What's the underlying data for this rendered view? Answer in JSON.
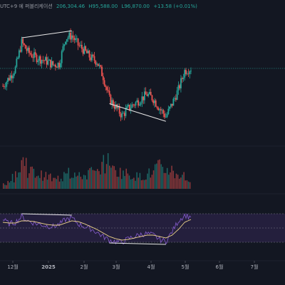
{
  "header": {
    "timezone": "UTC+9 에 퍼블리케이션",
    "values": [
      "206,304.46",
      "H95,588.00",
      "L96,870.00",
      "+13.58 (+0.01%)"
    ]
  },
  "xaxis": {
    "labels": [
      "12월",
      "2025",
      "2월",
      "3월",
      "4월",
      "5월",
      "6월",
      "7월"
    ]
  },
  "colors": {
    "background": "#131722",
    "up": "#26a69a",
    "down": "#ef5350",
    "divergence": "#e8e8e8",
    "price_line": "#26a69a",
    "rsi_line": "#7e57c2",
    "rsi_ma": "#f0d58c",
    "rsi_band": "#241f3d"
  },
  "chart_data": {
    "type": "candlestick",
    "x": [
      "12월",
      "2025",
      "2월",
      "3월",
      "4월",
      "5월",
      "6월",
      "7월"
    ],
    "price_series": [
      0.45,
      0.52,
      0.6,
      0.82,
      0.74,
      0.7,
      0.68,
      0.66,
      0.63,
      0.64,
      0.86,
      0.88,
      0.8,
      0.75,
      0.69,
      0.66,
      0.53,
      0.34,
      0.27,
      0.2,
      0.26,
      0.3,
      0.34,
      0.38,
      0.34,
      0.26,
      0.19,
      0.3,
      0.42,
      0.58,
      0.6
    ],
    "price_series_scale": "relative (0=bottom of visible range, 1=top)",
    "rsi_levels": [
      70,
      50,
      30
    ],
    "rsi_series": [
      62,
      56,
      58,
      66,
      60,
      57,
      55,
      53,
      52,
      55,
      62,
      64,
      56,
      52,
      49,
      44,
      38,
      33,
      31,
      30,
      35,
      38,
      41,
      42,
      40,
      34,
      31,
      45,
      60,
      68,
      65
    ],
    "rsi_ma_series": [
      58,
      57,
      57,
      60,
      60,
      59,
      57,
      55,
      54,
      54,
      57,
      60,
      59,
      56,
      52,
      48,
      43,
      38,
      35,
      33,
      34,
      36,
      38,
      40,
      40,
      38,
      36,
      40,
      48,
      58,
      62
    ],
    "volume_series": [
      0.2,
      0.35,
      0.55,
      0.9,
      0.6,
      0.5,
      0.45,
      0.4,
      0.3,
      0.35,
      0.7,
      0.5,
      0.4,
      0.45,
      0.55,
      0.5,
      0.8,
      1.0,
      0.6,
      0.55,
      0.5,
      0.45,
      0.4,
      0.45,
      0.5,
      0.7,
      0.6,
      0.65,
      0.5,
      0.45,
      0.3
    ],
    "divergences": [
      {
        "pane": "price",
        "from_index": 3,
        "to_index": 11
      },
      {
        "pane": "price",
        "from_index": 17,
        "to_index": 26
      },
      {
        "pane": "rsi",
        "from_index": 3,
        "to_index": 11
      },
      {
        "pane": "rsi",
        "from_index": 17,
        "to_index": 26
      }
    ],
    "current_price_line": true,
    "grid": false
  }
}
